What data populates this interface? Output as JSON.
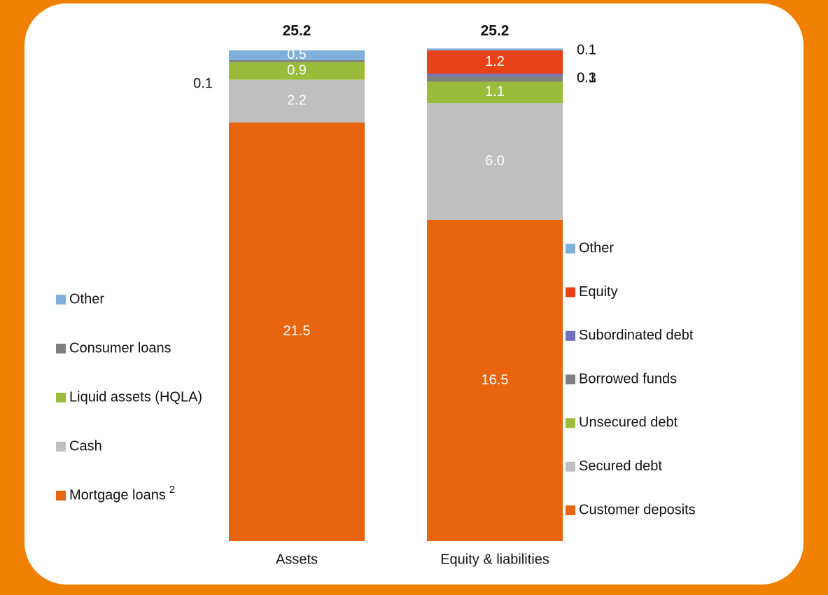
{
  "chart_data": [
    {
      "type": "stacked_bar",
      "category": "Assets",
      "total": 25.2,
      "series": [
        {
          "name": "Mortgage loans",
          "footnote": "2",
          "color": "#e8650f",
          "values": [
            21.5
          ]
        },
        {
          "name": "Cash",
          "color": "#bfbfbf",
          "values": [
            2.2
          ]
        },
        {
          "name": "Liquid assets (HQLA)",
          "color": "#9bbb3b",
          "values": [
            0.9
          ]
        },
        {
          "name": "Consumer loans",
          "color": "#7f7f7f",
          "values": [
            0.1
          ]
        },
        {
          "name": "Other",
          "color": "#7fb0dc",
          "values": [
            0.5
          ]
        }
      ]
    },
    {
      "type": "stacked_bar",
      "category": "Equity & liabilities",
      "total": 25.2,
      "series": [
        {
          "name": "Customer deposits",
          "color": "#e8650f",
          "values": [
            16.5
          ]
        },
        {
          "name": "Secured debt",
          "color": "#bfbfbf",
          "values": [
            6
          ],
          "value_labels": [
            "6.0"
          ]
        },
        {
          "name": "Unsecured debt",
          "color": "#9bbb3b",
          "values": [
            1.1
          ]
        },
        {
          "name": "Borrowed funds",
          "color": "#7f7f7f",
          "values": [
            0.3
          ]
        },
        {
          "name": "Subordinated debt",
          "color": "#7070c0",
          "values": [
            0.1
          ]
        },
        {
          "name": "Equity",
          "color": "#e84218",
          "values": [
            1.2
          ]
        },
        {
          "name": "Other",
          "color": "#7fb0dc",
          "values": [
            0.1
          ]
        }
      ]
    }
  ]
}
